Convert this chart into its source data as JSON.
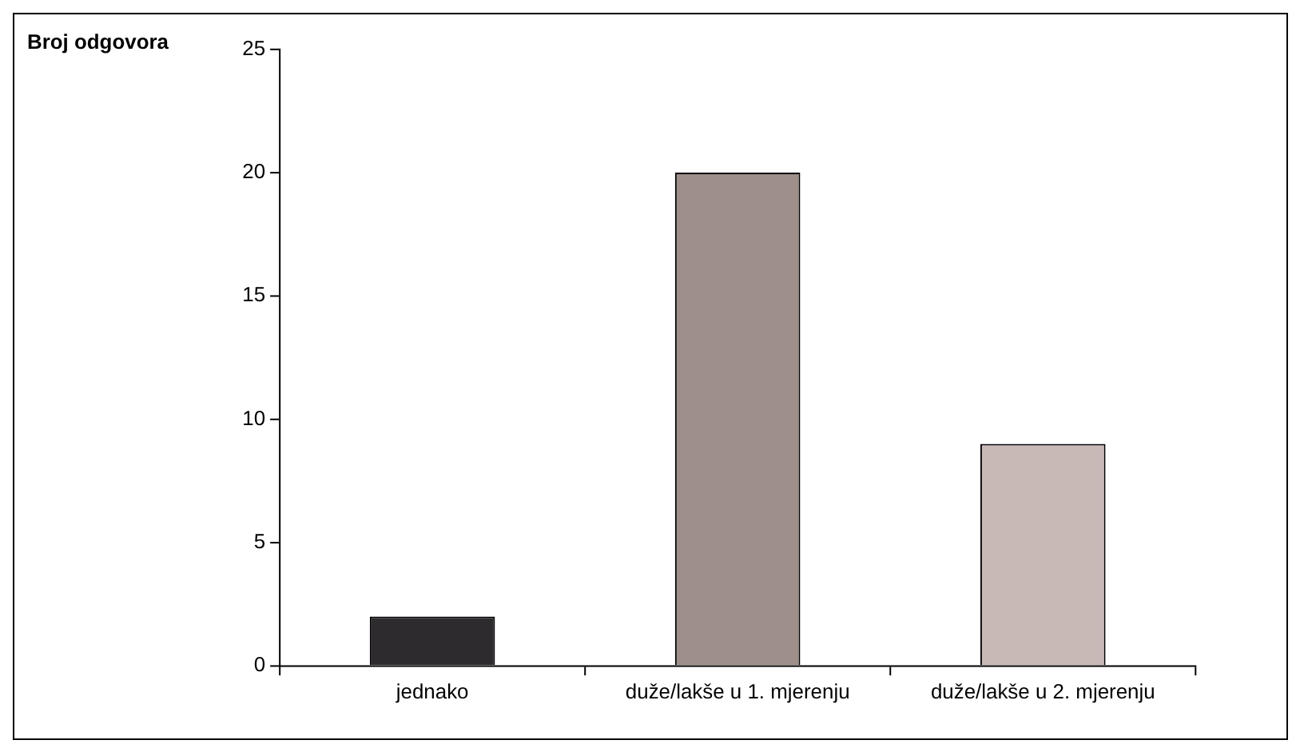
{
  "chart_data": {
    "type": "bar",
    "ylabel": "Broj odgovora",
    "categories": [
      "jednako",
      "duže/lakše u 1. mjerenju",
      "duže/lakše u 2. mjerenju"
    ],
    "values": [
      2,
      20,
      9
    ],
    "colors": [
      "#2e2b2e",
      "#9e8f8a",
      "#c9b9b6"
    ],
    "ylim": [
      0,
      25
    ],
    "yticks": [
      0,
      5,
      10,
      15,
      20,
      25
    ],
    "grid": false,
    "legend": false
  }
}
